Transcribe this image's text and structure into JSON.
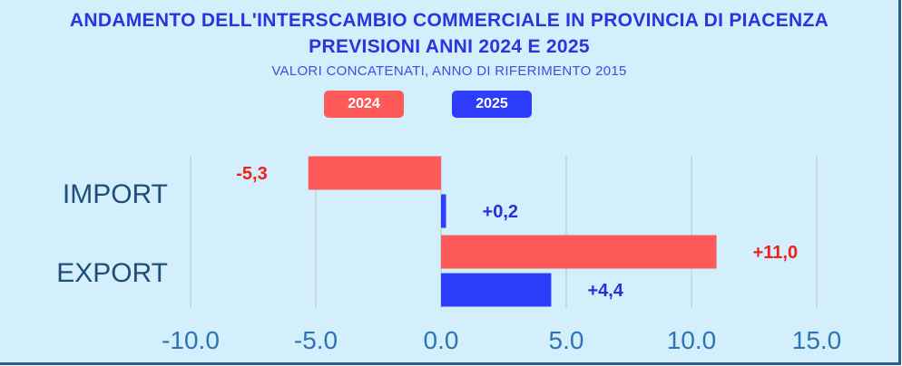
{
  "chart_data": {
    "type": "bar",
    "orientation": "horizontal",
    "title_line1": "ANDAMENTO DELL'INTERSCAMBIO COMMERCIALE IN PROVINCIA DI PIACENZA",
    "title_line2": "PREVISIONI ANNI  2024 E 2025",
    "subtitle": "VALORI CONCATENATI, ANNO DI RIFERIMENTO 2015",
    "categories": [
      "IMPORT",
      "EXPORT"
    ],
    "series": [
      {
        "name": "2024",
        "values": [
          -5.3,
          11.0
        ],
        "labels": [
          "-5,3",
          "+11,0"
        ],
        "color": "#ff5a5a",
        "label_color": "#f21d1d"
      },
      {
        "name": "2025",
        "values": [
          0.2,
          4.4
        ],
        "labels": [
          "+0,2",
          "+4,4"
        ],
        "color": "#2e3dfc",
        "label_color": "#2431d6"
      }
    ],
    "xlim": [
      -10,
      15
    ],
    "xticks": [
      -10,
      -5,
      0,
      5,
      10,
      15
    ],
    "xtick_labels": [
      "-10.0",
      "-5.0",
      "0.0",
      "5.0",
      "10.0",
      "15.0"
    ],
    "grid": "vertical",
    "legend_position": "top"
  }
}
